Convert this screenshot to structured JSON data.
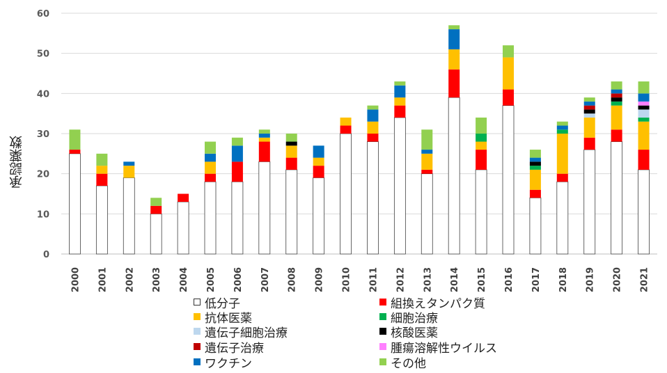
{
  "chart_data": {
    "type": "bar",
    "stacked": true,
    "ylabel": "承認薬数",
    "ylim": [
      0,
      60
    ],
    "yticks": [
      0,
      10,
      20,
      30,
      40,
      50,
      60
    ],
    "grid": true,
    "categories": [
      "2000",
      "2001",
      "2002",
      "2003",
      "2004",
      "2005",
      "2006",
      "2007",
      "2008",
      "2009",
      "2010",
      "2011",
      "2012",
      "2013",
      "2014",
      "2015",
      "2016",
      "2017",
      "2018",
      "2019",
      "2020",
      "2021"
    ],
    "series": [
      {
        "name": "低分子",
        "color": "#ffffff",
        "values": [
          25,
          17,
          19,
          10,
          13,
          18,
          18,
          23,
          21,
          19,
          30,
          28,
          34,
          20,
          39,
          21,
          37,
          14,
          18,
          26,
          28,
          21
        ]
      },
      {
        "name": "組換えタンパク質",
        "color": "#ff0000",
        "values": [
          1,
          3,
          0,
          2,
          2,
          2,
          5,
          5,
          3,
          3,
          2,
          2,
          3,
          1,
          7,
          5,
          4,
          2,
          2,
          3,
          3,
          5
        ]
      },
      {
        "name": "抗体医薬",
        "color": "#ffc000",
        "values": [
          0,
          2,
          3,
          0,
          0,
          3,
          0,
          1,
          3,
          2,
          2,
          3,
          2,
          4,
          5,
          2,
          8,
          5,
          10,
          5,
          6,
          7
        ]
      },
      {
        "name": "細胞治療",
        "color": "#00b050",
        "values": [
          0,
          0,
          0,
          0,
          0,
          0,
          0,
          0,
          0,
          0,
          0,
          0,
          0,
          0,
          0,
          2,
          0,
          1,
          1,
          0,
          1,
          1
        ]
      },
      {
        "name": "遺伝子細胞治療",
        "color": "#bdd7ee",
        "values": [
          0,
          0,
          0,
          0,
          0,
          0,
          0,
          0,
          0,
          0,
          0,
          0,
          0,
          0,
          0,
          0,
          0,
          0,
          0,
          1,
          0,
          2
        ]
      },
      {
        "name": "核酸医薬",
        "color": "#000000",
        "values": [
          0,
          0,
          0,
          0,
          0,
          0,
          0,
          0,
          1,
          0,
          0,
          0,
          0,
          0,
          0,
          0,
          0,
          1,
          0,
          1,
          1,
          1
        ]
      },
      {
        "name": "遺伝子治療",
        "color": "#c00000",
        "values": [
          0,
          0,
          0,
          0,
          0,
          0,
          0,
          0,
          0,
          0,
          0,
          0,
          0,
          0,
          0,
          0,
          0,
          0,
          0,
          1,
          1,
          0
        ]
      },
      {
        "name": "腫瘍溶解性ウイルス",
        "color": "#ff80ff",
        "values": [
          0,
          0,
          0,
          0,
          0,
          0,
          0,
          0,
          0,
          0,
          0,
          0,
          0,
          0,
          0,
          0,
          0,
          0,
          0,
          0,
          0,
          1
        ]
      },
      {
        "name": "ワクチン",
        "color": "#0070c0",
        "values": [
          0,
          0,
          1,
          0,
          0,
          2,
          4,
          1,
          0,
          3,
          0,
          3,
          3,
          1,
          5,
          0,
          0,
          1,
          1,
          1,
          1,
          2
        ]
      },
      {
        "name": "その他",
        "color": "#92d050",
        "values": [
          5,
          3,
          0,
          2,
          0,
          3,
          2,
          1,
          2,
          0,
          0,
          1,
          1,
          5,
          1,
          4,
          3,
          2,
          1,
          1,
          2,
          3
        ]
      }
    ]
  },
  "legend": {
    "items": [
      {
        "label": "低分子",
        "color": "#ffffff"
      },
      {
        "label": "組換えタンパク質",
        "color": "#ff0000"
      },
      {
        "label": "抗体医薬",
        "color": "#ffc000"
      },
      {
        "label": "細胞治療",
        "color": "#00b050"
      },
      {
        "label": "遺伝子細胞治療",
        "color": "#bdd7ee"
      },
      {
        "label": "核酸医薬",
        "color": "#000000"
      },
      {
        "label": "遺伝子治療",
        "color": "#c00000"
      },
      {
        "label": "腫瘍溶解性ウイルス",
        "color": "#ff80ff"
      },
      {
        "label": "ワクチン",
        "color": "#0070c0"
      },
      {
        "label": "その他",
        "color": "#92d050"
      }
    ]
  }
}
